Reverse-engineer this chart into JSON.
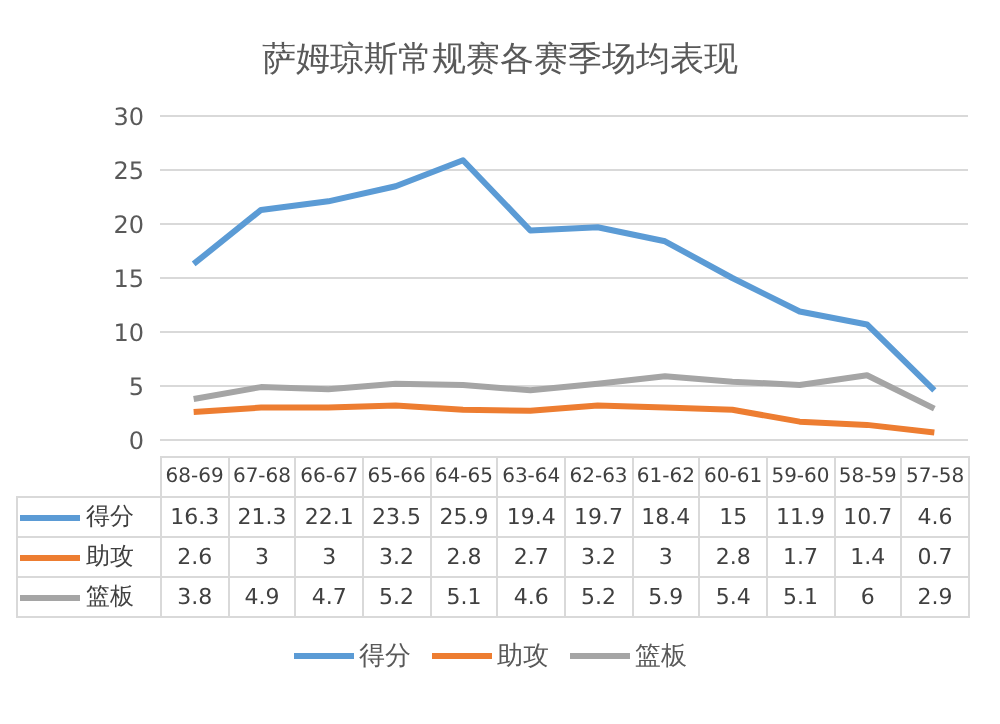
{
  "chart_data": {
    "type": "line",
    "title": "萨姆琼斯常规赛各赛季场均表现",
    "categories": [
      "68-69",
      "67-68",
      "66-67",
      "65-66",
      "64-65",
      "63-64",
      "62-63",
      "61-62",
      "60-61",
      "59-60",
      "58-59",
      "57-58"
    ],
    "series": [
      {
        "name": "得分",
        "color": "#5b9bd5",
        "values": [
          16.3,
          21.3,
          22.1,
          23.5,
          25.9,
          19.4,
          19.7,
          18.4,
          15,
          11.9,
          10.7,
          4.6
        ]
      },
      {
        "name": "助攻",
        "color": "#ed7d31",
        "values": [
          2.6,
          3,
          3,
          3.2,
          2.8,
          2.7,
          3.2,
          3,
          2.8,
          1.7,
          1.4,
          0.7
        ]
      },
      {
        "name": "篮板",
        "color": "#a5a5a5",
        "values": [
          3.8,
          4.9,
          4.7,
          5.2,
          5.1,
          4.6,
          5.2,
          5.9,
          5.4,
          5.1,
          6,
          2.9
        ]
      }
    ],
    "ylim": [
      0,
      30
    ],
    "yticks": [
      0,
      5,
      10,
      15,
      20,
      25,
      30
    ],
    "grid": "y",
    "legend": "bottom",
    "data_labels": true,
    "marker": "none",
    "line_style": "solid"
  }
}
